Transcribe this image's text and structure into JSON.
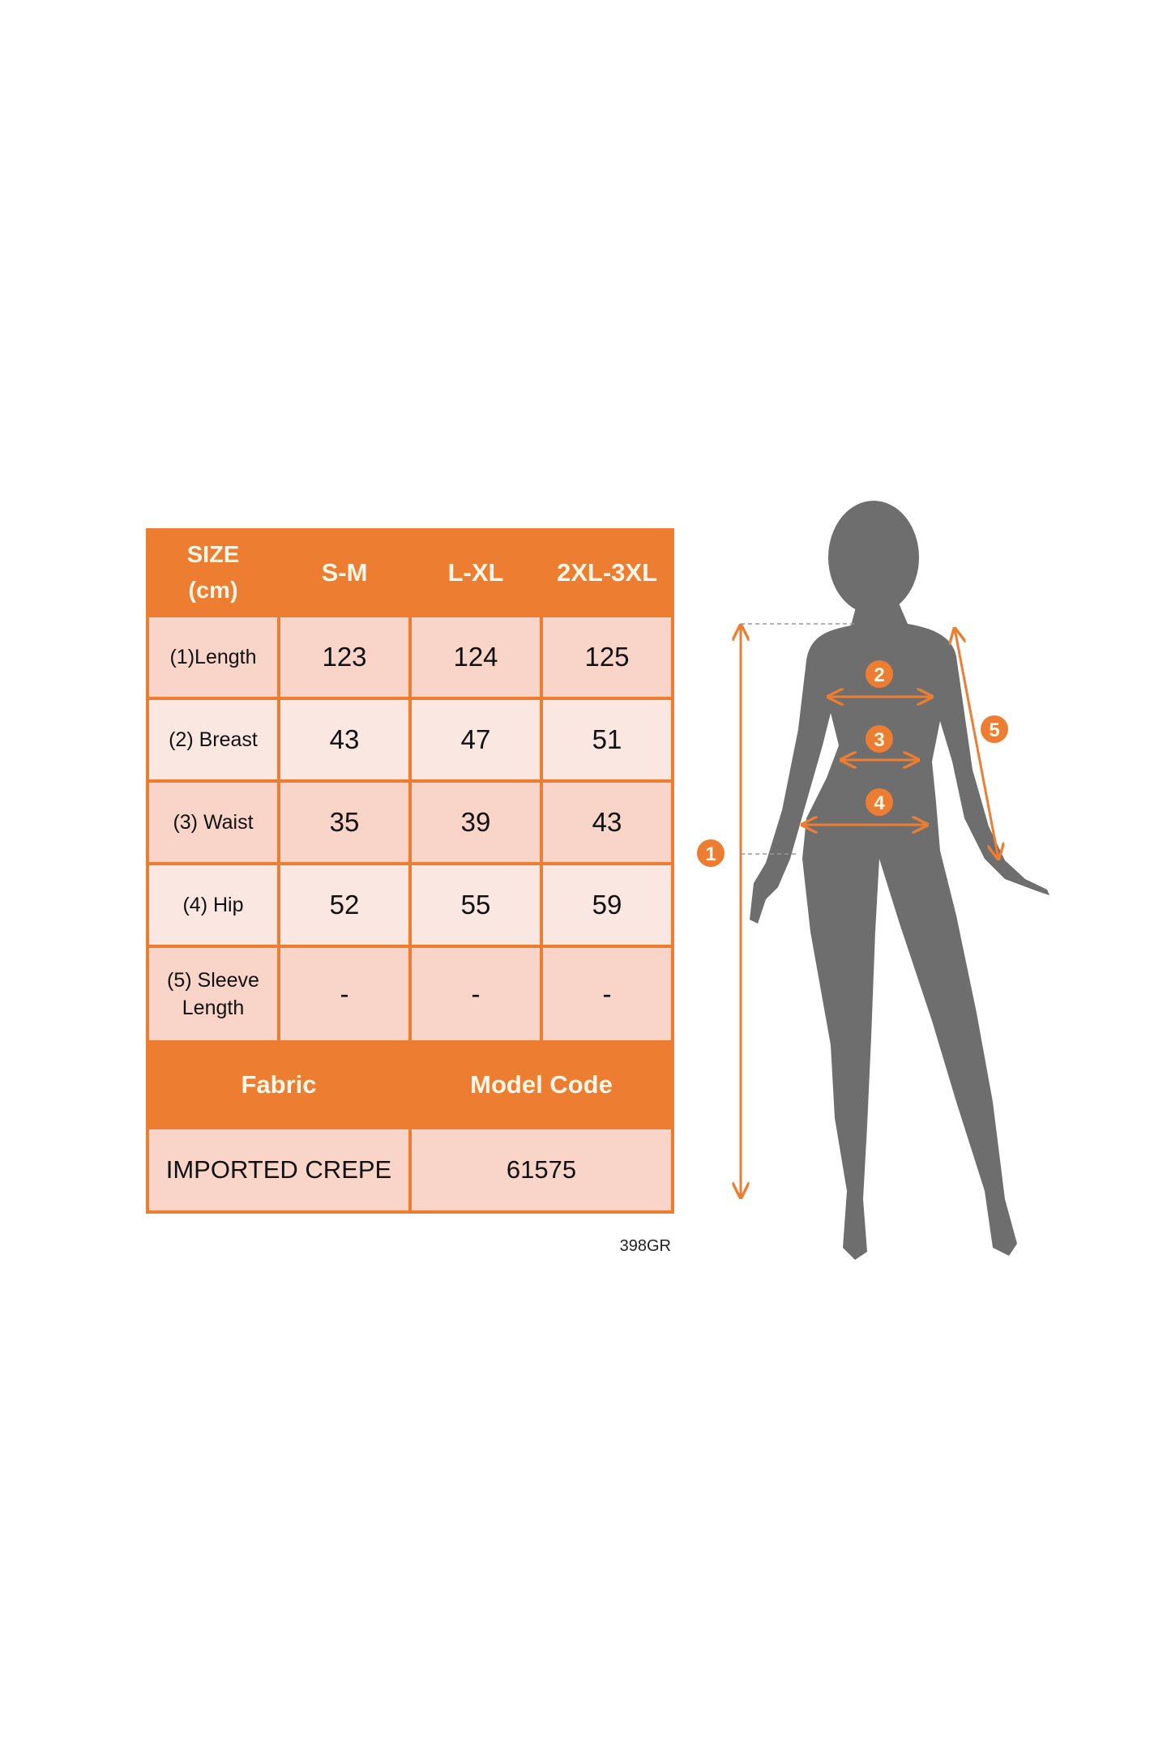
{
  "size_chart": {
    "header": [
      "SIZE\n(cm)",
      "S-M",
      "L-XL",
      "2XL-3XL"
    ],
    "header_size_line1": "SIZE",
    "header_size_line2": "(cm)",
    "rows": [
      {
        "label": "(1)Length",
        "values": [
          "123",
          "124",
          "125"
        ]
      },
      {
        "label": "(2) Breast",
        "values": [
          "43",
          "47",
          "51"
        ]
      },
      {
        "label": "(3) Waist",
        "values": [
          "35",
          "39",
          "43"
        ]
      },
      {
        "label": "(4) Hip",
        "values": [
          "52",
          "55",
          "59"
        ]
      },
      {
        "label_line1": "(5) Sleeve",
        "label_line2": "Length",
        "values": [
          "-",
          "-",
          "-"
        ]
      }
    ],
    "footer_headers": [
      "Fabric",
      "Model Code"
    ],
    "footer_values": [
      "IMPORTED CREPE",
      "61575"
    ],
    "code_note": "398GR"
  },
  "figure": {
    "markers": [
      "1",
      "2",
      "3",
      "4",
      "5"
    ],
    "silhouette_color": "#6E6E6E",
    "accent_color": "#ED7D31"
  }
}
